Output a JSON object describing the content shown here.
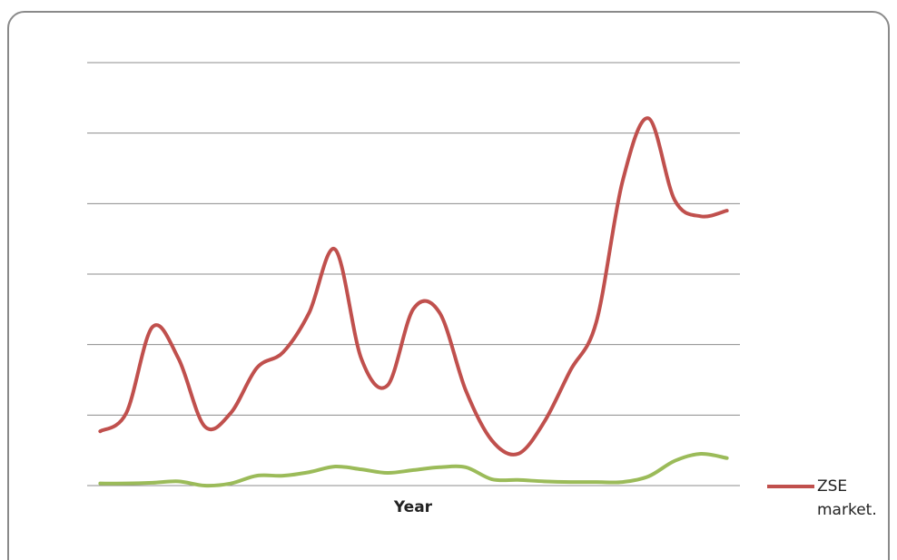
{
  "chart_data": {
    "type": "line",
    "x_label": "Year",
    "categories": [
      null,
      null,
      null,
      null,
      null,
      null,
      null,
      null,
      null,
      null,
      null,
      null,
      null,
      null,
      null,
      null,
      null,
      null,
      null,
      null,
      null,
      null,
      null,
      null,
      null
    ],
    "series": [
      {
        "name": "ZSE market.",
        "color": "#c0504d",
        "values": [
          0.77,
          1.03,
          2.25,
          1.8,
          0.84,
          1.03,
          1.67,
          1.89,
          2.45,
          3.35,
          1.8,
          1.42,
          2.51,
          2.45,
          1.35,
          0.64,
          0.45,
          0.9,
          1.63,
          2.32,
          4.31,
          5.21,
          4.05,
          3.82,
          3.9
        ]
      },
      {
        "color": "#9bbb59",
        "values": [
          0.03,
          0.03,
          0.04,
          0.06,
          0,
          0.03,
          0.14,
          0.14,
          0.19,
          0.27,
          0.23,
          0.18,
          0.22,
          0.26,
          0.26,
          0.09,
          0.08,
          0.06,
          0.05,
          0.05,
          0.05,
          0.13,
          0.35,
          0.45,
          0.39
        ]
      }
    ],
    "ylim": [
      0,
      6
    ],
    "yticks": [
      0,
      1,
      2,
      3,
      4,
      5,
      6
    ],
    "grid": true,
    "legend": "right"
  }
}
